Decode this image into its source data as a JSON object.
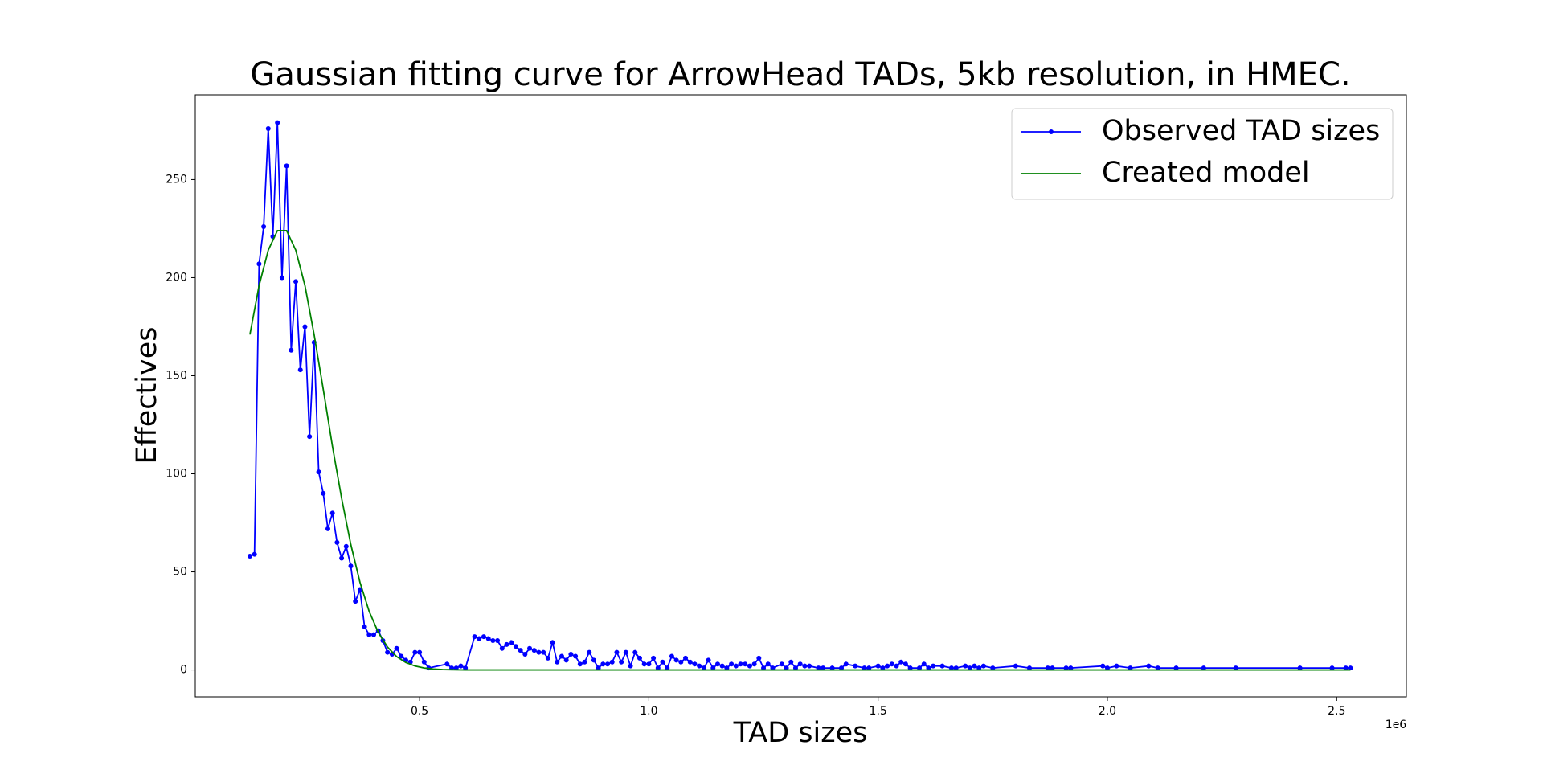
{
  "chart_data": {
    "type": "line",
    "title": "Gaussian fitting curve for ArrowHead TADs, 5kb resolution, in HMEC.",
    "x_label": "TAD sizes",
    "y_label": "Effectives",
    "x_offset_label": "1e6",
    "xlim": [
      10870,
      2652000
    ],
    "ylim": [
      -13.7,
      293.2
    ],
    "xticks": [
      {
        "value": 500000,
        "label": "0.5"
      },
      {
        "value": 1000000,
        "label": "1.0"
      },
      {
        "value": 1500000,
        "label": "1.5"
      },
      {
        "value": 2000000,
        "label": "2.0"
      },
      {
        "value": 2500000,
        "label": "2.5"
      }
    ],
    "yticks": [
      0,
      50,
      100,
      150,
      200,
      250
    ],
    "grid": false,
    "legend": "upper right",
    "series": [
      {
        "name": "Observed TAD sizes",
        "color": "#0000ff",
        "marker": true,
        "x": [
          130000,
          140000,
          150000,
          160000,
          170000,
          180000,
          190000,
          200000,
          210000,
          220000,
          230000,
          240000,
          250000,
          260000,
          270000,
          280000,
          290000,
          300000,
          310000,
          320000,
          330000,
          340000,
          350000,
          360000,
          370000,
          380000,
          390000,
          400000,
          410000,
          420000,
          430000,
          440000,
          450000,
          460000,
          470000,
          480000,
          490000,
          500000,
          510000,
          520000,
          560000,
          570000,
          580000,
          590000,
          600000,
          620000,
          630000,
          640000,
          650000,
          660000,
          670000,
          680000,
          690000,
          700000,
          710000,
          720000,
          730000,
          740000,
          750000,
          760000,
          770000,
          780000,
          790000,
          800000,
          810000,
          820000,
          830000,
          840000,
          850000,
          860000,
          870000,
          880000,
          890000,
          900000,
          910000,
          920000,
          930000,
          940000,
          950000,
          960000,
          970000,
          980000,
          990000,
          1000000,
          1010000,
          1020000,
          1030000,
          1040000,
          1050000,
          1060000,
          1070000,
          1080000,
          1090000,
          1100000,
          1110000,
          1120000,
          1130000,
          1140000,
          1150000,
          1160000,
          1170000,
          1180000,
          1190000,
          1200000,
          1210000,
          1220000,
          1230000,
          1240000,
          1250000,
          1260000,
          1270000,
          1290000,
          1300000,
          1310000,
          1320000,
          1330000,
          1340000,
          1350000,
          1370000,
          1380000,
          1400000,
          1420000,
          1430000,
          1450000,
          1470000,
          1480000,
          1500000,
          1510000,
          1520000,
          1530000,
          1540000,
          1550000,
          1560000,
          1570000,
          1590000,
          1600000,
          1610000,
          1620000,
          1640000,
          1660000,
          1670000,
          1690000,
          1700000,
          1710000,
          1720000,
          1730000,
          1750000,
          1800000,
          1830000,
          1870000,
          1880000,
          1910000,
          1920000,
          1990000,
          2000000,
          2020000,
          2050000,
          2090000,
          2110000,
          2150000,
          2210000,
          2280000,
          2420000,
          2490000,
          2520000,
          2530000
        ],
        "values": [
          58,
          59,
          207,
          226,
          276,
          221,
          279,
          200,
          257,
          163,
          198,
          153,
          175,
          119,
          167,
          101,
          90,
          72,
          80,
          65,
          57,
          63,
          53,
          35,
          41,
          22,
          18,
          18,
          20,
          15,
          9,
          8,
          11,
          7,
          5,
          4,
          9,
          9,
          4,
          1,
          3,
          1,
          1,
          2,
          1,
          17,
          16,
          17,
          16,
          15,
          15,
          11,
          13,
          14,
          12,
          10,
          8,
          11,
          10,
          9,
          9,
          6,
          14,
          4,
          7,
          5,
          8,
          7,
          3,
          4,
          9,
          5,
          1,
          3,
          3,
          4,
          9,
          4,
          9,
          2,
          9,
          6,
          3,
          3,
          6,
          1,
          4,
          1,
          7,
          5,
          4,
          6,
          4,
          3,
          2,
          1,
          5,
          1,
          3,
          2,
          1,
          3,
          2,
          3,
          3,
          2,
          3,
          6,
          1,
          3,
          1,
          3,
          1,
          4,
          1,
          3,
          2,
          2,
          1,
          1,
          1,
          1,
          3,
          2,
          1,
          1,
          2,
          1,
          2,
          3,
          2,
          4,
          3,
          1,
          1,
          3,
          1,
          2,
          2,
          1,
          1,
          2,
          1,
          2,
          1,
          2,
          1,
          2,
          1,
          1,
          1,
          1,
          1,
          2,
          1,
          2,
          1,
          2,
          1,
          1,
          1,
          1,
          1,
          1,
          1,
          1
        ]
      },
      {
        "name": "Created model",
        "color": "#008000",
        "marker": false,
        "x": [
          130000,
          150000,
          170000,
          190000,
          210000,
          230000,
          250000,
          270000,
          290000,
          310000,
          330000,
          350000,
          370000,
          390000,
          410000,
          430000,
          450000,
          470000,
          490000,
          510000,
          530000,
          550000,
          600000,
          1000000,
          1500000,
          2000000,
          2530000
        ],
        "values": [
          171,
          196,
          214,
          224,
          224,
          214,
          196,
          171,
          143,
          114,
          87.5,
          64,
          44.7,
          29.9,
          19.1,
          11.7,
          6.8,
          3.8,
          2.0,
          1.0,
          0.5,
          0.2,
          0,
          0,
          0,
          0,
          0
        ]
      }
    ]
  }
}
